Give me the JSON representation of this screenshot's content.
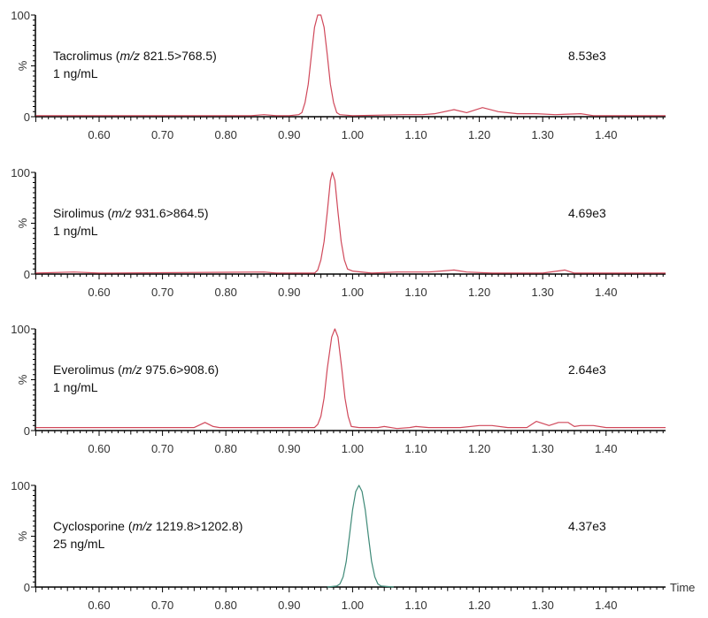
{
  "chart_data": [
    {
      "type": "line",
      "title": "Tacrolimus (m/z 821.5>768.5)",
      "title_parts": {
        "name": "Tacrolimus (",
        "mz": "m/z",
        "rest": " 821.5>768.5)"
      },
      "subtitle": "1 ng/mL",
      "intensity": "8.53e3",
      "ylabel": "%",
      "yticks": [
        "100",
        "0"
      ],
      "ylim": [
        0,
        100
      ],
      "xlim": [
        0.5,
        1.494
      ],
      "xticks": [
        "0.60",
        "0.70",
        "0.80",
        "0.90",
        "1.00",
        "1.10",
        "1.20",
        "1.30",
        "1.40"
      ],
      "color": "#d0485a",
      "points": [
        [
          0.5,
          1
        ],
        [
          0.84,
          1
        ],
        [
          0.86,
          2
        ],
        [
          0.88,
          1
        ],
        [
          0.9,
          1
        ],
        [
          0.915,
          2
        ],
        [
          0.92,
          4
        ],
        [
          0.925,
          14
        ],
        [
          0.93,
          32
        ],
        [
          0.935,
          61
        ],
        [
          0.94,
          88
        ],
        [
          0.945,
          100
        ],
        [
          0.95,
          100
        ],
        [
          0.955,
          88
        ],
        [
          0.96,
          61
        ],
        [
          0.965,
          32
        ],
        [
          0.97,
          14
        ],
        [
          0.975,
          4
        ],
        [
          0.98,
          2
        ],
        [
          1.0,
          1
        ],
        [
          1.08,
          2
        ],
        [
          1.11,
          2
        ],
        [
          1.13,
          3
        ],
        [
          1.16,
          7
        ],
        [
          1.18,
          4
        ],
        [
          1.205,
          9
        ],
        [
          1.23,
          5
        ],
        [
          1.26,
          3
        ],
        [
          1.29,
          3
        ],
        [
          1.32,
          2
        ],
        [
          1.36,
          3
        ],
        [
          1.38,
          1
        ],
        [
          1.494,
          1
        ]
      ]
    },
    {
      "type": "line",
      "title": "Sirolimus (m/z 931.6>864.5)",
      "title_parts": {
        "name": "Sirolimus (",
        "mz": "m/z",
        "rest": " 931.6>864.5)"
      },
      "subtitle": "1 ng/mL",
      "intensity": "4.69e3",
      "ylabel": "%",
      "yticks": [
        "100",
        "0"
      ],
      "ylim": [
        0,
        100
      ],
      "xlim": [
        0.5,
        1.494
      ],
      "xticks": [
        "0.60",
        "0.70",
        "0.80",
        "0.90",
        "1.00",
        "1.10",
        "1.20",
        "1.30",
        "1.40"
      ],
      "color": "#d0485a",
      "points": [
        [
          0.5,
          1
        ],
        [
          0.56,
          2
        ],
        [
          0.6,
          1
        ],
        [
          0.86,
          2
        ],
        [
          0.88,
          1
        ],
        [
          0.94,
          1
        ],
        [
          0.945,
          4
        ],
        [
          0.95,
          14
        ],
        [
          0.955,
          32
        ],
        [
          0.96,
          61
        ],
        [
          0.965,
          92
        ],
        [
          0.968,
          100
        ],
        [
          0.972,
          92
        ],
        [
          0.977,
          61
        ],
        [
          0.982,
          32
        ],
        [
          0.987,
          14
        ],
        [
          0.992,
          5
        ],
        [
          1.0,
          3
        ],
        [
          1.03,
          1
        ],
        [
          1.07,
          2
        ],
        [
          1.12,
          2
        ],
        [
          1.16,
          4
        ],
        [
          1.18,
          2
        ],
        [
          1.22,
          1
        ],
        [
          1.3,
          1
        ],
        [
          1.335,
          4
        ],
        [
          1.35,
          1
        ],
        [
          1.494,
          1
        ]
      ]
    },
    {
      "type": "line",
      "title": "Everolimus (m/z 975.6>908.6)",
      "title_parts": {
        "name": "Everolimus (",
        "mz": "m/z",
        "rest": " 975.6>908.6)"
      },
      "subtitle": "1 ng/mL",
      "intensity": "2.64e3",
      "ylabel": "%",
      "yticks": [
        "100",
        "0"
      ],
      "ylim": [
        0,
        100
      ],
      "xlim": [
        0.5,
        1.494
      ],
      "xticks": [
        "0.60",
        "0.70",
        "0.80",
        "0.90",
        "1.00",
        "1.10",
        "1.20",
        "1.30",
        "1.40"
      ],
      "color": "#d0485a",
      "points": [
        [
          0.5,
          3
        ],
        [
          0.75,
          3
        ],
        [
          0.767,
          8
        ],
        [
          0.78,
          4
        ],
        [
          0.79,
          3
        ],
        [
          0.94,
          3
        ],
        [
          0.945,
          6
        ],
        [
          0.95,
          14
        ],
        [
          0.955,
          32
        ],
        [
          0.96,
          61
        ],
        [
          0.967,
          92
        ],
        [
          0.972,
          100
        ],
        [
          0.977,
          92
        ],
        [
          0.983,
          61
        ],
        [
          0.988,
          32
        ],
        [
          0.993,
          14
        ],
        [
          0.998,
          4
        ],
        [
          1.01,
          3
        ],
        [
          1.04,
          3
        ],
        [
          1.05,
          4
        ],
        [
          1.07,
          2
        ],
        [
          1.09,
          3
        ],
        [
          1.1,
          4
        ],
        [
          1.12,
          3
        ],
        [
          1.15,
          3
        ],
        [
          1.17,
          3
        ],
        [
          1.2,
          5
        ],
        [
          1.22,
          5
        ],
        [
          1.245,
          3
        ],
        [
          1.275,
          3
        ],
        [
          1.29,
          9
        ],
        [
          1.31,
          5
        ],
        [
          1.325,
          8
        ],
        [
          1.34,
          8
        ],
        [
          1.35,
          4
        ],
        [
          1.36,
          5
        ],
        [
          1.38,
          5
        ],
        [
          1.4,
          3
        ],
        [
          1.494,
          3
        ]
      ]
    },
    {
      "type": "line",
      "title": "Cyclosporine (m/z 1219.8>1202.8)",
      "title_parts": {
        "name": "Cyclosporine (",
        "mz": "m/z",
        "rest": " 1219.8>1202.8)"
      },
      "subtitle": "25 ng/mL",
      "intensity": "4.37e3",
      "ylabel": "%",
      "yticks": [
        "100",
        "0"
      ],
      "ylim": [
        0,
        100
      ],
      "xlim": [
        0.5,
        1.494
      ],
      "xticks": [
        "0.60",
        "0.70",
        "0.80",
        "0.90",
        "1.00",
        "1.10",
        "1.20",
        "1.30",
        "1.40"
      ],
      "xlabel": "Time",
      "color": "#3f8a78",
      "points": [
        [
          0.96,
          0
        ],
        [
          0.975,
          1
        ],
        [
          0.98,
          3
        ],
        [
          0.985,
          10
        ],
        [
          0.99,
          25
        ],
        [
          0.995,
          50
        ],
        [
          1.0,
          76
        ],
        [
          1.005,
          94
        ],
        [
          1.01,
          100
        ],
        [
          1.015,
          94
        ],
        [
          1.02,
          76
        ],
        [
          1.025,
          50
        ],
        [
          1.03,
          25
        ],
        [
          1.035,
          10
        ],
        [
          1.04,
          3
        ],
        [
          1.045,
          1
        ],
        [
          1.065,
          0
        ]
      ]
    }
  ]
}
